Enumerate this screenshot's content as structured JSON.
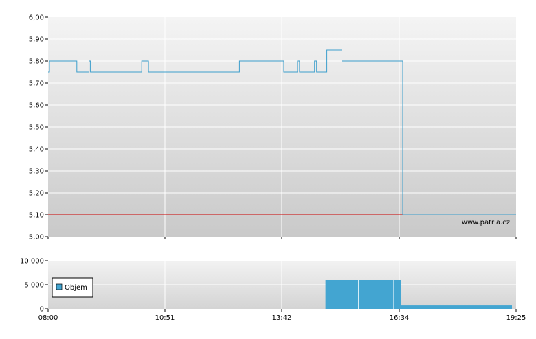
{
  "watermark": "www.patria.cz",
  "colors": {
    "price_line": "#3d9fcc",
    "reference_line": "#cc0000",
    "volume_fill": "#43a5d1",
    "plot_top": "#f4f4f4",
    "plot_bottom": "#c9c9c9",
    "grid": "#ffffff"
  },
  "x_axis": {
    "ticks": [
      "08:00",
      "10:51",
      "13:42",
      "16:34",
      "19:25"
    ],
    "range_minutes": [
      480,
      1165
    ]
  },
  "chart_data": [
    {
      "type": "line",
      "grid": true,
      "ylim": [
        5.0,
        6.0
      ],
      "yticks": [
        "6,00",
        "5,90",
        "5,80",
        "5,70",
        "5,60",
        "5,50",
        "5,40",
        "5,30",
        "5,20",
        "5,10",
        "5,00"
      ],
      "reference_value": 5.1,
      "series": [
        {
          "x": [
            "08:00",
            "08:02",
            "08:40",
            "08:42",
            "09:00",
            "09:02",
            "10:15",
            "10:17",
            "10:25",
            "10:27",
            "12:38",
            "12:40",
            "13:42",
            "13:45",
            "14:05",
            "14:08",
            "14:30",
            "14:33",
            "14:46",
            "14:48",
            "15:10",
            "16:37",
            "16:39",
            "19:25"
          ],
          "y": [
            5.75,
            5.8,
            5.8,
            5.75,
            5.8,
            5.75,
            5.75,
            5.8,
            5.8,
            5.75,
            5.75,
            5.8,
            5.8,
            5.75,
            5.8,
            5.75,
            5.8,
            5.75,
            5.75,
            5.85,
            5.8,
            5.8,
            5.1,
            5.1
          ]
        }
      ]
    },
    {
      "type": "bar",
      "grid": true,
      "ylim": [
        0,
        10000
      ],
      "yticks": [
        "10 000",
        "5 000",
        "0"
      ],
      "legend": "top-left",
      "series": [
        {
          "name": "Objem",
          "x": [
            "14:46",
            "16:36",
            "19:25"
          ],
          "values": [
            6000,
            6000,
            700
          ]
        }
      ]
    }
  ]
}
